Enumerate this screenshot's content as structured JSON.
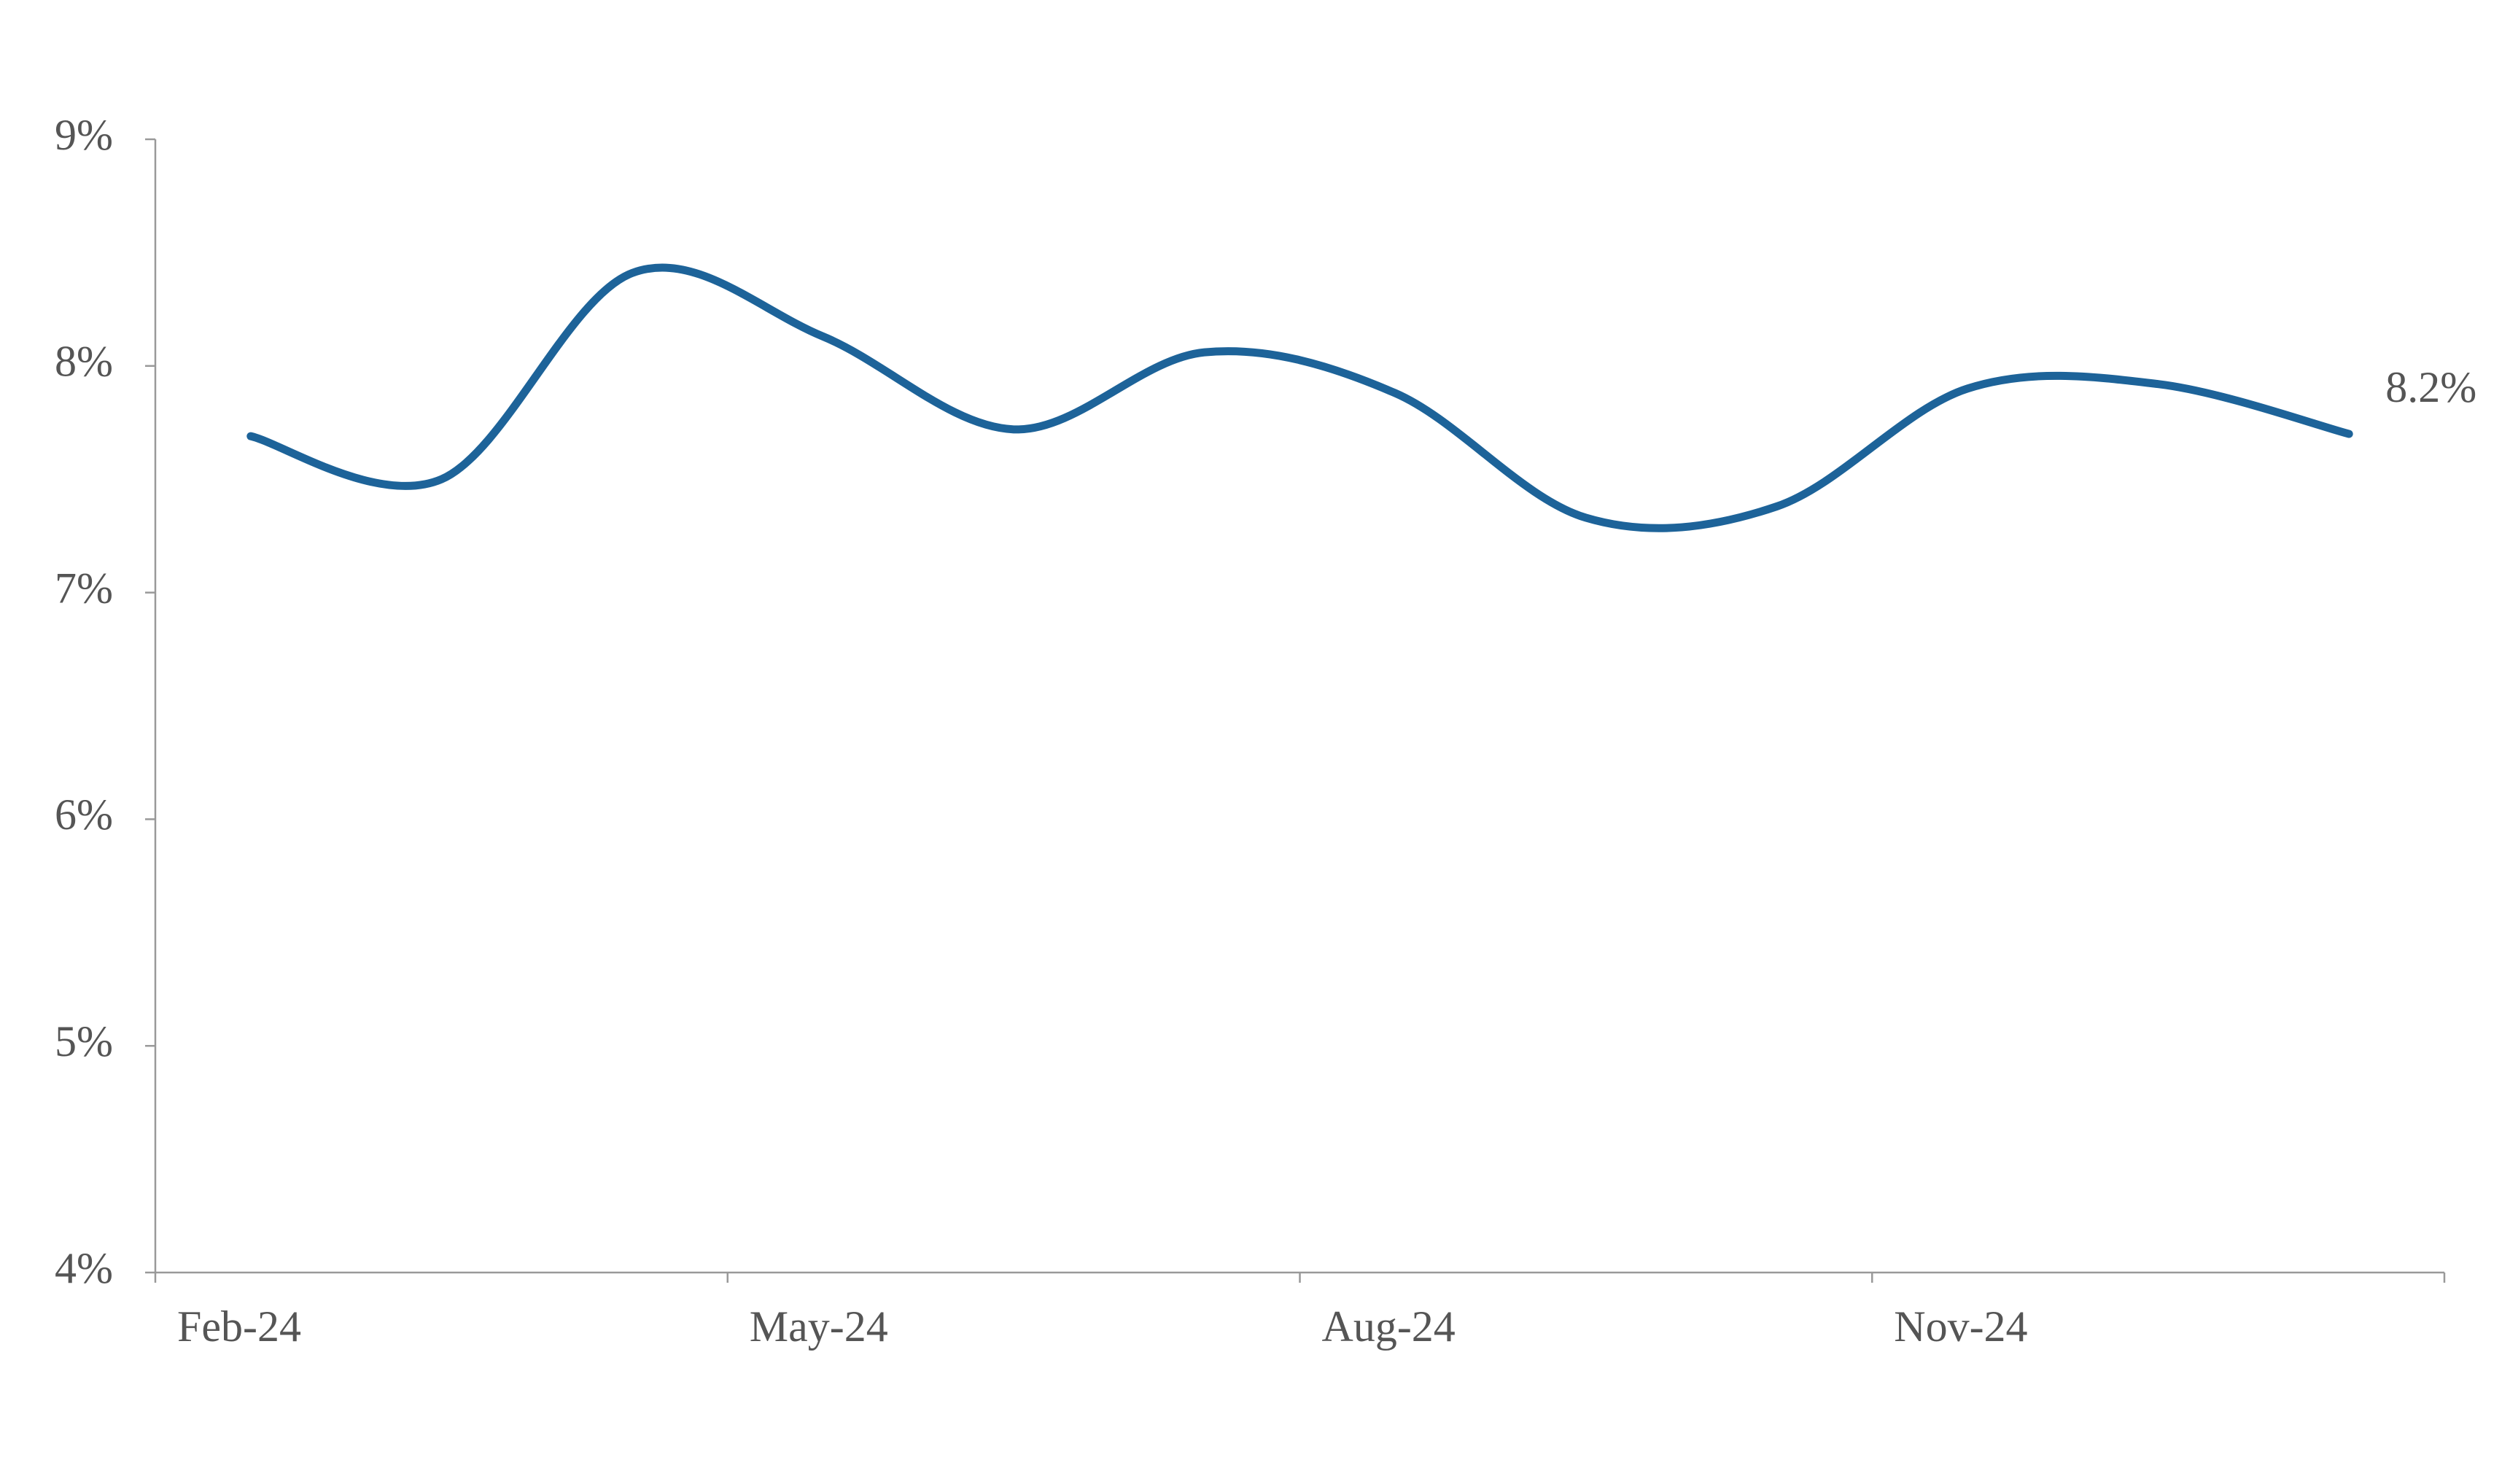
{
  "chart_data": {
    "type": "line",
    "categories": [
      "Feb-24",
      null,
      null,
      "May-24",
      null,
      null,
      "Aug-24",
      null,
      null,
      "Nov-24",
      null,
      null
    ],
    "values": [
      7.69,
      7.5,
      8.41,
      8.13,
      7.72,
      8.06,
      7.88,
      7.33,
      7.38,
      7.9,
      7.92,
      7.7
    ],
    "color": "#1d6399",
    "annotation": "8.2%",
    "ylim": [
      4,
      9
    ],
    "yticks": [
      {
        "value": 4,
        "label": "4%"
      },
      {
        "value": 5,
        "label": "5%"
      },
      {
        "value": 6,
        "label": "6%"
      },
      {
        "value": 7,
        "label": "7%"
      },
      {
        "value": 8,
        "label": "8%"
      },
      {
        "value": 9,
        "label": "9%"
      }
    ],
    "grid": false
  }
}
